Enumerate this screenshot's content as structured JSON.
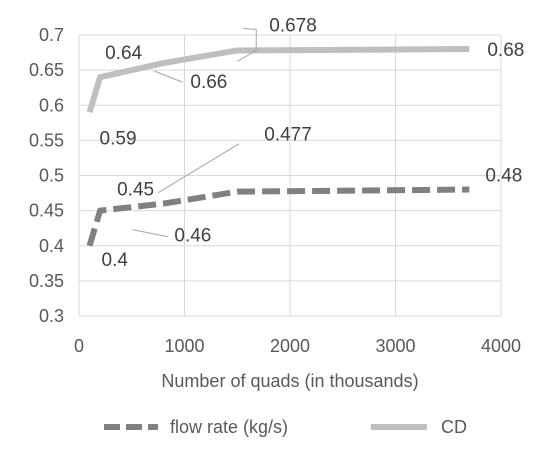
{
  "chart_data": {
    "type": "line",
    "title": "",
    "xlabel": "Number of quads (in thousands)",
    "ylabel": "",
    "xlim": [
      0,
      4000
    ],
    "ylim": [
      0.3,
      0.7
    ],
    "xticks": [
      0,
      1000,
      2000,
      3000,
      4000
    ],
    "yticks": [
      0.3,
      0.35,
      0.4,
      0.45,
      0.5,
      0.55,
      0.6,
      0.65,
      0.7
    ],
    "xtick_labels": [
      "0",
      "1000",
      "2000",
      "3000",
      "4000"
    ],
    "ytick_labels": [
      "0.3",
      "0.35",
      "0.4",
      "0.45",
      "0.5",
      "0.55",
      "0.6",
      "0.65",
      "0.7"
    ],
    "grid": true,
    "legend_position": "bottom",
    "series": [
      {
        "name": "flow rate (kg/s)",
        "color": "#808080",
        "dash": "dashed",
        "points": [
          {
            "x": 100,
            "y": 0.4,
            "label": "0.4"
          },
          {
            "x": 200,
            "y": 0.45,
            "label": "0.45"
          },
          {
            "x": 800,
            "y": 0.46,
            "label": "0.46"
          },
          {
            "x": 1500,
            "y": 0.477,
            "label": "0.477"
          },
          {
            "x": 3700,
            "y": 0.48,
            "label": "0.48"
          }
        ]
      },
      {
        "name": "CD",
        "color": "#bfbfbf",
        "dash": "solid",
        "points": [
          {
            "x": 100,
            "y": 0.59,
            "label": "0.59"
          },
          {
            "x": 200,
            "y": 0.64,
            "label": "0.64"
          },
          {
            "x": 800,
            "y": 0.66,
            "label": "0.66"
          },
          {
            "x": 1500,
            "y": 0.678,
            "label": "0.678"
          },
          {
            "x": 3700,
            "y": 0.68,
            "label": "0.68"
          }
        ]
      }
    ]
  }
}
